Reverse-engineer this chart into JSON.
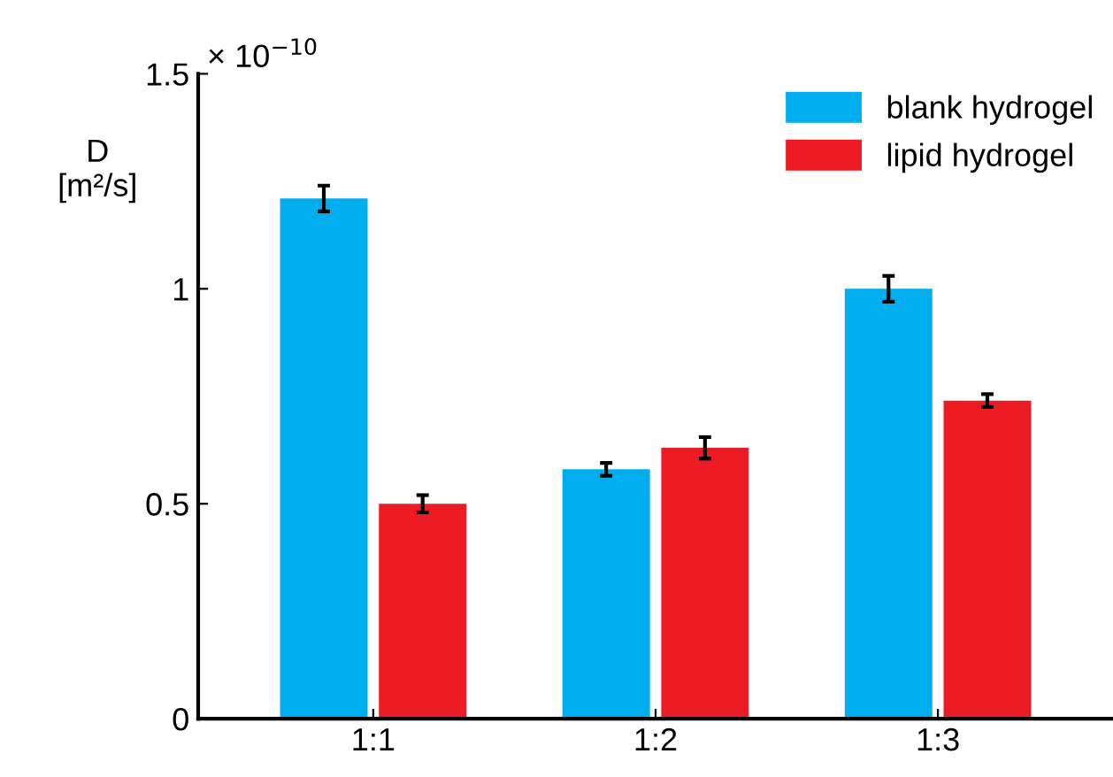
{
  "chart_data": {
    "type": "bar",
    "categories": [
      "1:1",
      "1:2",
      "1:3"
    ],
    "series": [
      {
        "name": "blank hydrogel",
        "color": "#00aeef",
        "values": [
          1.21,
          0.58,
          1.0
        ],
        "errors": [
          0.03,
          0.015,
          0.03
        ]
      },
      {
        "name": "lipid hydrogel",
        "color": "#ed1c24",
        "values": [
          0.5,
          0.63,
          0.74
        ],
        "errors": [
          0.02,
          0.025,
          0.015
        ]
      }
    ],
    "ylabel": "D\n[m²/s]",
    "annotations": [
      "× 10$^{−10}$"
    ],
    "ylim": [
      0,
      1.5
    ],
    "yticks": [
      0,
      {
        "value": 0.5,
        "label": "0.5"
      },
      1,
      1.5
    ],
    "grid": false,
    "legend": "top right"
  }
}
